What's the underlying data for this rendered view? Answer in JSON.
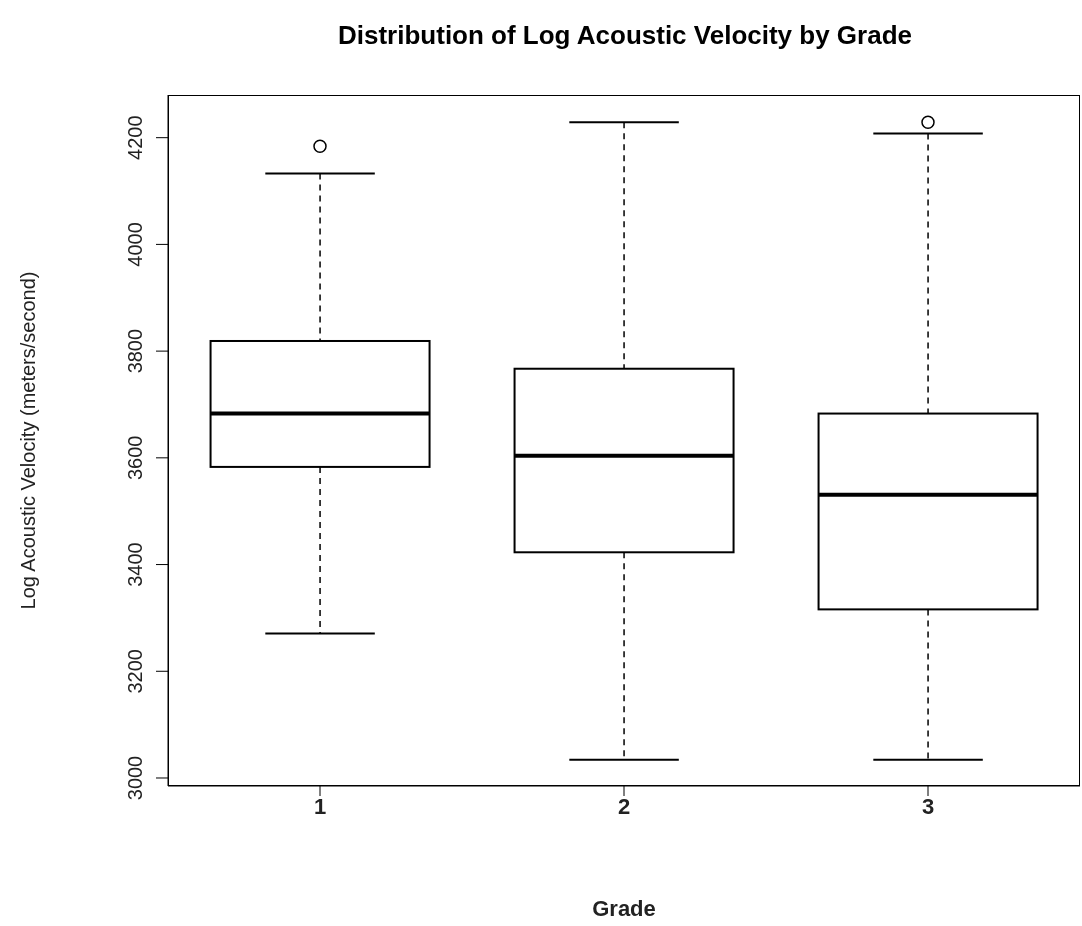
{
  "chart_data": {
    "type": "box",
    "title": "Distribution of Log Acoustic Velocity by Grade",
    "xlabel": "Grade",
    "ylabel": "Log Acoustic Velocity (meters/second)",
    "categories": [
      "1",
      "2",
      "3"
    ],
    "boxes": [
      {
        "low": 3271,
        "q1": 3583,
        "median": 3683,
        "q3": 3819,
        "high": 4133,
        "outliers": [
          4184
        ]
      },
      {
        "low": 3034,
        "q1": 3423,
        "median": 3604,
        "q3": 3767,
        "high": 4229
      },
      {
        "low": 3034,
        "q1": 3316,
        "median": 3531,
        "q3": 3683,
        "high": 4208,
        "outliers": [
          4229
        ]
      }
    ],
    "ylim": [
      2985,
      4280
    ],
    "yticks": [
      3000,
      3200,
      3400,
      3600,
      3800,
      4000,
      4200
    ],
    "grid": false,
    "legend": false
  }
}
